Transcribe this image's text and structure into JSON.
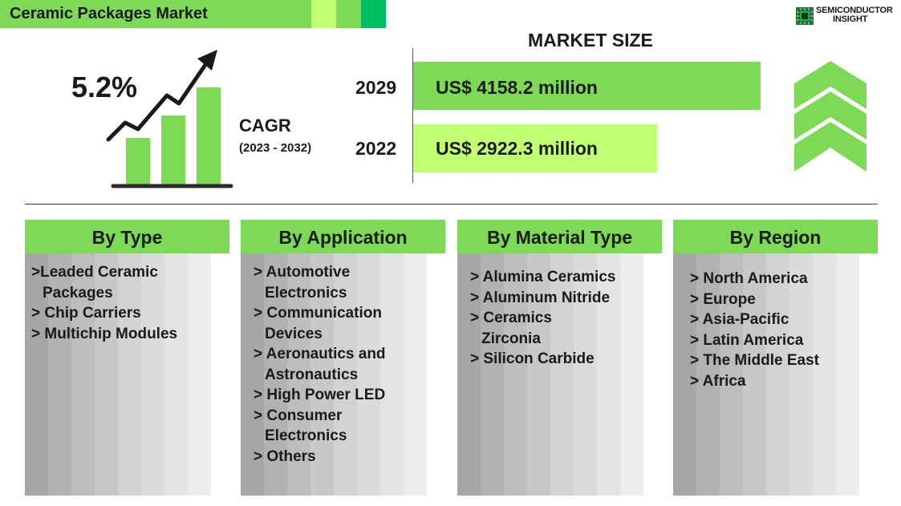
{
  "header": {
    "title": "Ceramic Packages Market",
    "colors": {
      "green": "#7ed957",
      "light_green": "#c1ff72",
      "dark_green": "#00bf63"
    }
  },
  "logo": {
    "line1": "SEMICONDUCTOR",
    "line2": "INSIGHT",
    "icon": "chip-icon"
  },
  "cagr": {
    "value": "5.2%",
    "label": "CAGR",
    "period": "(2023 - 2032)",
    "icon": "growth-chart-icon"
  },
  "market_size": {
    "title": "MARKET SIZE",
    "rows": [
      {
        "year": "2029",
        "label": "US$ 4158.2 million",
        "value": 4158.2,
        "color": "#7ed957"
      },
      {
        "year": "2022",
        "label": "US$ 2922.3 million",
        "value": 2922.3,
        "color": "#c1ff72"
      }
    ],
    "decoration": "chevron-up-icon"
  },
  "segments": [
    {
      "title": "By Type",
      "items": [
        ">Leaded Ceramic",
        "Packages",
        "> Chip Carriers",
        "> Multichip Modules"
      ],
      "continuation": [
        false,
        true,
        false,
        false
      ]
    },
    {
      "title": "By Application",
      "items": [
        "> Automotive",
        "Electronics",
        "> Communication",
        "Devices",
        "> Aeronautics and",
        "Astronautics",
        "> High Power LED",
        "> Consumer",
        "Electronics",
        "> Others"
      ],
      "continuation": [
        false,
        true,
        false,
        true,
        false,
        true,
        false,
        false,
        true,
        false
      ]
    },
    {
      "title": "By Material Type",
      "items": [
        "> Alumina Ceramics",
        "> Aluminum Nitride",
        "> Ceramics",
        "Zirconia",
        "> Silicon Carbide"
      ],
      "continuation": [
        false,
        false,
        false,
        true,
        false
      ]
    },
    {
      "title": "By Region",
      "items": [
        "> North America",
        "> Europe",
        "> Asia-Pacific",
        "> Latin America",
        "> The Middle East",
        "> Africa"
      ],
      "continuation": [
        false,
        false,
        false,
        false,
        false,
        false
      ]
    }
  ]
}
